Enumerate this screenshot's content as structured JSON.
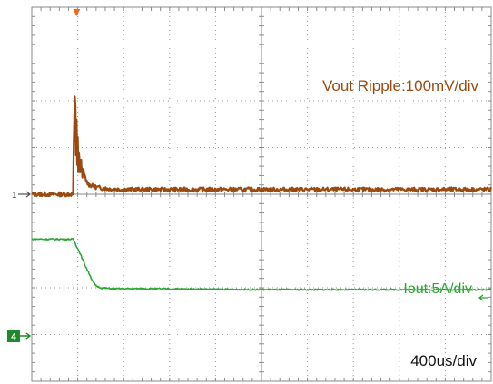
{
  "chart_data": {
    "type": "line",
    "time_per_div": "400us/div",
    "x_unit": "us",
    "xlim": [
      0,
      4000
    ],
    "grid": {
      "divisions_x": 10,
      "divisions_y": 8,
      "style": "dotted",
      "center_crosshair": true
    },
    "series": [
      {
        "name": "Vout Ripple:100mV/div",
        "channel_marker": "1",
        "scale_label": "Vout Ripple:100mV/div",
        "color": "#9a4a0f",
        "unit": "mV",
        "ylim": [
          -400,
          400
        ],
        "x": [
          0,
          360,
          365,
          375,
          380,
          385,
          390,
          395,
          400,
          405,
          410,
          420,
          430,
          440,
          450,
          470,
          500,
          560,
          650,
          800,
          1200,
          2000,
          3000,
          4000
        ],
        "y": [
          0,
          0,
          100,
          210,
          190,
          80,
          160,
          60,
          120,
          50,
          90,
          50,
          70,
          40,
          50,
          30,
          20,
          15,
          12,
          10,
          10,
          10,
          10,
          10
        ]
      },
      {
        "name": "Iout:5A/div",
        "channel_marker": "4",
        "scale_label": "Iout:5A/div",
        "color": "#2aa832",
        "unit": "A",
        "ylim": [
          -20,
          20
        ],
        "x": [
          0,
          360,
          380,
          420,
          460,
          500,
          530,
          560,
          600,
          700,
          1000,
          2000,
          3000,
          4000
        ],
        "y": [
          -4.8,
          -4.8,
          -5.3,
          -6.3,
          -7.5,
          -8.5,
          -9.3,
          -9.8,
          -10.0,
          -10.1,
          -10.1,
          -10.2,
          -10.2,
          -10.2
        ]
      }
    ],
    "trigger_marker_color": "#f06a1a",
    "trigger_x": 390
  }
}
